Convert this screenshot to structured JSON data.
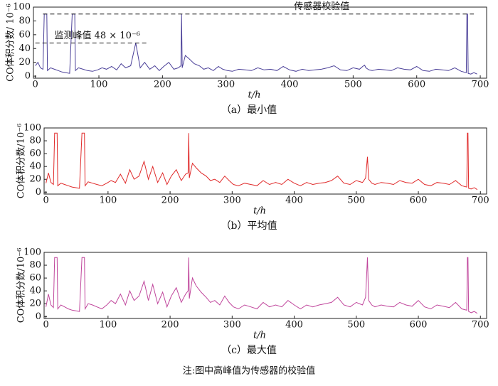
{
  "chart_data": [
    {
      "type": "line",
      "caption": "（a）最小值",
      "y_label": "CO体积分数/ 10⁻⁶",
      "x_label": "t/h",
      "color": "#4a3f98",
      "xlim": [
        -3,
        710
      ],
      "ylim": [
        -3,
        100
      ],
      "xticks": [
        0,
        100,
        200,
        300,
        400,
        500,
        600,
        700
      ],
      "yticks": [
        0,
        20,
        40,
        60,
        80,
        100
      ],
      "reference_lines": [
        {
          "label": "传感器校验值",
          "value": 90,
          "x_range": [
            12,
            690
          ]
        },
        {
          "label": "监测峰值 48 × 10⁻⁶",
          "value": 48,
          "x_range": [
            0,
            175
          ]
        }
      ],
      "x": [
        0,
        4,
        8,
        12,
        14,
        15,
        18,
        19,
        24,
        30,
        36,
        42,
        48,
        54,
        58,
        59,
        62,
        63,
        68,
        75,
        82,
        90,
        98,
        105,
        112,
        120,
        128,
        135,
        142,
        150,
        158,
        165,
        172,
        180,
        188,
        195,
        202,
        210,
        218,
        225,
        229,
        230,
        231,
        236,
        242,
        250,
        258,
        265,
        272,
        280,
        288,
        295,
        302,
        310,
        320,
        330,
        340,
        350,
        360,
        370,
        380,
        390,
        400,
        410,
        420,
        430,
        440,
        450,
        460,
        470,
        480,
        490,
        500,
        510,
        515,
        518,
        520,
        525,
        530,
        540,
        550,
        560,
        570,
        580,
        590,
        600,
        610,
        620,
        630,
        640,
        650,
        660,
        670,
        678,
        679,
        680,
        681,
        685,
        690,
        695
      ],
      "values": [
        15,
        20,
        12,
        10,
        90,
        90,
        90,
        8,
        12,
        10,
        8,
        6,
        5,
        4,
        90,
        90,
        90,
        8,
        12,
        10,
        8,
        7,
        9,
        12,
        10,
        14,
        9,
        18,
        12,
        15,
        48,
        12,
        20,
        10,
        15,
        8,
        14,
        20,
        10,
        12,
        15,
        90,
        12,
        30,
        25,
        18,
        15,
        10,
        12,
        8,
        14,
        10,
        8,
        7,
        10,
        9,
        8,
        12,
        9,
        10,
        8,
        14,
        9,
        7,
        10,
        8,
        9,
        10,
        12,
        15,
        9,
        8,
        12,
        10,
        14,
        16,
        12,
        9,
        8,
        10,
        9,
        8,
        12,
        10,
        9,
        14,
        8,
        7,
        10,
        9,
        8,
        12,
        7,
        5,
        90,
        90,
        4,
        3,
        5,
        3
      ]
    },
    {
      "type": "line",
      "caption": "（b）平均值",
      "y_label": "CO体积分数/10⁻⁶",
      "x_label": "t/h",
      "color": "#e02a2a",
      "xlim": [
        -3,
        710
      ],
      "ylim": [
        -3,
        100
      ],
      "xticks": [
        0,
        100,
        200,
        300,
        400,
        500,
        600,
        700
      ],
      "yticks": [
        0,
        20,
        40,
        60,
        80,
        100
      ],
      "x": [
        0,
        4,
        8,
        12,
        14,
        15,
        18,
        19,
        24,
        30,
        36,
        42,
        48,
        54,
        58,
        59,
        62,
        63,
        68,
        75,
        82,
        90,
        98,
        105,
        112,
        120,
        128,
        135,
        142,
        150,
        158,
        165,
        172,
        180,
        188,
        195,
        202,
        210,
        218,
        225,
        229,
        230,
        231,
        236,
        242,
        250,
        258,
        265,
        272,
        280,
        288,
        295,
        302,
        310,
        320,
        330,
        340,
        350,
        360,
        370,
        380,
        390,
        400,
        410,
        420,
        430,
        440,
        450,
        460,
        470,
        480,
        490,
        500,
        510,
        515,
        518,
        520,
        525,
        530,
        540,
        550,
        560,
        570,
        580,
        590,
        600,
        610,
        620,
        630,
        640,
        650,
        660,
        670,
        678,
        679,
        680,
        681,
        685,
        690,
        695
      ],
      "values": [
        14,
        30,
        15,
        12,
        92,
        92,
        92,
        10,
        14,
        12,
        10,
        8,
        7,
        6,
        92,
        92,
        92,
        10,
        16,
        14,
        12,
        10,
        14,
        18,
        15,
        28,
        14,
        35,
        20,
        25,
        48,
        20,
        40,
        15,
        30,
        12,
        25,
        35,
        18,
        28,
        30,
        92,
        22,
        45,
        38,
        30,
        25,
        18,
        20,
        15,
        25,
        18,
        12,
        10,
        14,
        12,
        10,
        18,
        12,
        15,
        12,
        20,
        14,
        10,
        15,
        12,
        14,
        15,
        18,
        25,
        14,
        12,
        18,
        15,
        22,
        55,
        20,
        14,
        12,
        15,
        14,
        12,
        18,
        15,
        14,
        20,
        12,
        10,
        15,
        14,
        12,
        18,
        10,
        8,
        92,
        92,
        6,
        5,
        7,
        4
      ]
    },
    {
      "type": "line",
      "caption": "（c）最大值",
      "y_label": "CO体积分数/10⁻⁶",
      "x_label": "t/h",
      "color": "#c0469c",
      "xlim": [
        -3,
        710
      ],
      "ylim": [
        -3,
        100
      ],
      "xticks": [
        0,
        100,
        200,
        300,
        400,
        500,
        600,
        700
      ],
      "yticks": [
        0,
        20,
        40,
        60,
        80,
        100
      ],
      "footnote": "注:图中高峰值为传感器的校验值",
      "x": [
        0,
        4,
        8,
        12,
        14,
        15,
        18,
        19,
        24,
        30,
        36,
        42,
        48,
        54,
        58,
        59,
        62,
        63,
        68,
        75,
        82,
        90,
        98,
        105,
        112,
        120,
        128,
        135,
        142,
        150,
        158,
        165,
        172,
        180,
        188,
        195,
        202,
        210,
        218,
        225,
        229,
        230,
        231,
        236,
        242,
        250,
        258,
        265,
        272,
        280,
        288,
        295,
        302,
        310,
        320,
        330,
        340,
        350,
        360,
        370,
        380,
        390,
        400,
        410,
        420,
        430,
        440,
        450,
        460,
        470,
        480,
        490,
        500,
        510,
        515,
        518,
        520,
        525,
        530,
        540,
        550,
        560,
        570,
        580,
        590,
        600,
        610,
        620,
        630,
        640,
        650,
        660,
        670,
        678,
        679,
        680,
        681,
        685,
        690,
        695
      ],
      "values": [
        15,
        35,
        18,
        14,
        92,
        92,
        92,
        12,
        18,
        15,
        12,
        10,
        9,
        8,
        92,
        92,
        92,
        12,
        20,
        18,
        15,
        12,
        18,
        25,
        20,
        35,
        18,
        40,
        25,
        32,
        55,
        25,
        50,
        20,
        38,
        15,
        32,
        45,
        22,
        35,
        40,
        92,
        28,
        60,
        48,
        38,
        30,
        22,
        25,
        18,
        32,
        22,
        15,
        12,
        18,
        15,
        12,
        22,
        15,
        18,
        15,
        25,
        18,
        12,
        18,
        15,
        18,
        20,
        22,
        30,
        18,
        15,
        22,
        18,
        30,
        92,
        25,
        18,
        15,
        18,
        16,
        15,
        22,
        18,
        16,
        25,
        15,
        12,
        18,
        16,
        14,
        22,
        12,
        10,
        92,
        92,
        8,
        6,
        8,
        5
      ]
    }
  ]
}
